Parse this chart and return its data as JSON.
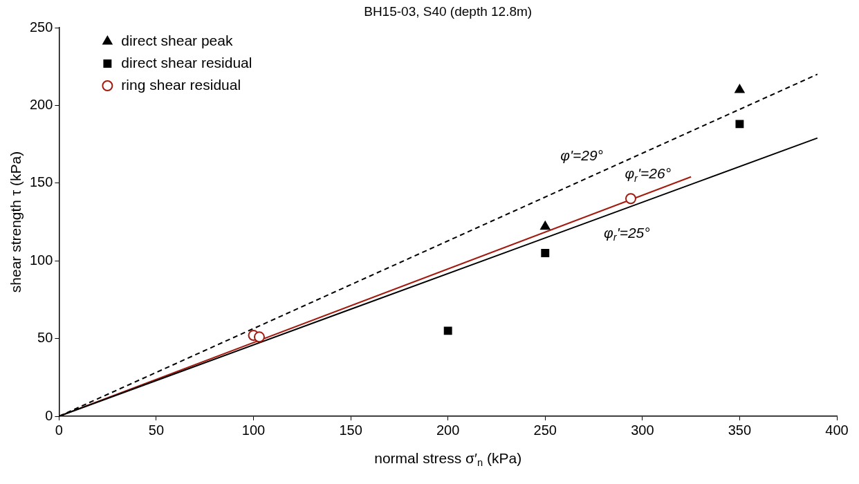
{
  "chart_data": {
    "type": "scatter",
    "title": "BH15-03, S40 (depth 12.8m)",
    "xlabel": "normal stress σ′$_{n}$ (kPa)",
    "ylabel": "shear strength τ (kPa)",
    "xlim": [
      0,
      400
    ],
    "xticks": [
      0,
      50,
      100,
      150,
      200,
      250,
      300,
      350,
      400
    ],
    "ylim": [
      0,
      250
    ],
    "yticks": [
      0,
      50,
      100,
      150,
      200,
      250
    ],
    "grid": false,
    "legend": "top left",
    "series": [
      {
        "name": "direct shear peak",
        "type": "scatter",
        "marker": "triangle",
        "color": "#000000",
        "x": [
          250,
          350
        ],
        "values": [
          122,
          210
        ]
      },
      {
        "name": "direct shear residual",
        "type": "scatter",
        "marker": "square",
        "color": "#000000",
        "x": [
          200,
          250,
          350
        ],
        "values": [
          55,
          105,
          188
        ]
      },
      {
        "name": "ring shear residual",
        "type": "scatter",
        "marker": "circle",
        "color": "#a31a0f",
        "x": [
          100,
          103,
          294
        ],
        "values": [
          52,
          51,
          140
        ]
      },
      {
        "type": "line",
        "line_style": "dashed",
        "marker": "none",
        "color": "#000000",
        "x": [
          0,
          390
        ],
        "values": [
          0,
          220
        ]
      },
      {
        "type": "line",
        "line_style": "solid",
        "marker": "none",
        "color": "#000000",
        "x": [
          0,
          390
        ],
        "values": [
          0,
          179
        ]
      },
      {
        "type": "line",
        "line_style": "solid",
        "marker": "none",
        "color": "#a31a0f",
        "x": [
          0,
          325
        ],
        "values": [
          0,
          154
        ]
      }
    ],
    "annotations": [
      "φ'=29°",
      "φ$_{r}$'=26°",
      "φ$_{r}$'=25°"
    ]
  }
}
